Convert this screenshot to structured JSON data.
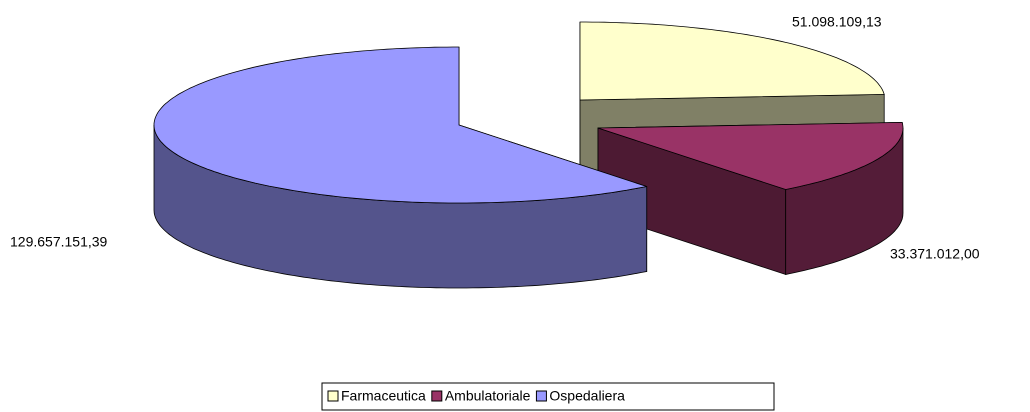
{
  "chart_data": {
    "type": "pie",
    "categories": [
      "Farmaceutica",
      "Ambulatoriale",
      "Ospedaliera"
    ],
    "values": [
      51098109.13,
      33371012.0,
      129657151.39
    ],
    "value_labels": [
      "51.098.109,13",
      "33.371.012,00",
      "129.657.151,39"
    ],
    "colors": [
      "#ffffcc",
      "#993366",
      "#9999ff"
    ],
    "legend": "bottom"
  }
}
